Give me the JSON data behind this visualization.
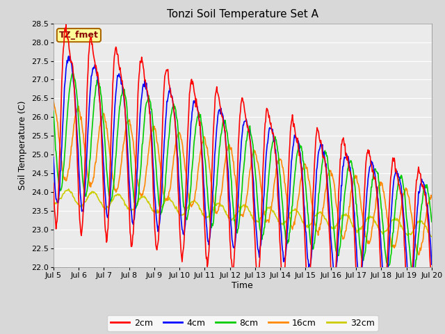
{
  "title": "Tonzi Soil Temperature Set A",
  "xlabel": "Time",
  "ylabel": "Soil Temperature (C)",
  "ylim": [
    22.0,
    28.5
  ],
  "xlim": [
    0,
    360
  ],
  "x_tick_labels": [
    "Jul 5",
    "Jul 6",
    "Jul 7",
    "Jul 8",
    "Jul 9",
    "Jul 10",
    "Jul 11",
    "Jul 12",
    "Jul 13",
    "Jul 14",
    "Jul 15",
    "Jul 16",
    "Jul 17",
    "Jul 18",
    "Jul 19",
    "Jul 20"
  ],
  "x_tick_positions": [
    0,
    24,
    48,
    72,
    96,
    120,
    144,
    168,
    192,
    216,
    240,
    264,
    288,
    312,
    336,
    360
  ],
  "yticks": [
    22.0,
    22.5,
    23.0,
    23.5,
    24.0,
    24.5,
    25.0,
    25.5,
    26.0,
    26.5,
    27.0,
    27.5,
    28.0,
    28.5
  ],
  "colors": {
    "2cm": "#ff0000",
    "4cm": "#0000ff",
    "8cm": "#00cc00",
    "16cm": "#ff8800",
    "32cm": "#cccc00"
  },
  "legend_label": "TZ_fmet",
  "legend_box_facecolor": "#ffff99",
  "legend_box_edgecolor": "#aa6600",
  "fig_facecolor": "#d8d8d8",
  "plot_facecolor": "#ebebeb",
  "grid_color": "#ffffff",
  "title_fontsize": 11,
  "axis_label_fontsize": 9,
  "tick_fontsize": 8,
  "legend_fontsize": 9,
  "line_width": 1.2
}
